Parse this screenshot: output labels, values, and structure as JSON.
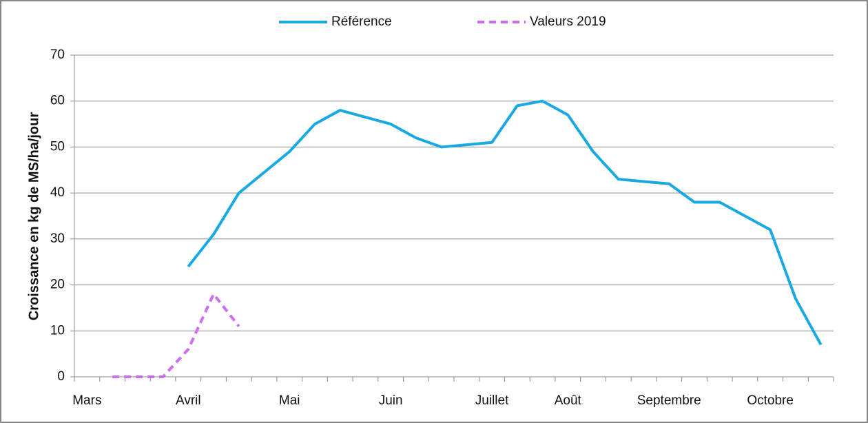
{
  "chart_data": {
    "type": "line",
    "y_label": "Croissance en kg de MS/ha/jour",
    "categories": [
      "Mars",
      null,
      null,
      null,
      "Avril",
      null,
      null,
      null,
      "Mai",
      null,
      null,
      null,
      "Juin",
      null,
      null,
      null,
      "Juillet",
      null,
      null,
      "Août",
      null,
      null,
      null,
      "Septembre",
      null,
      null,
      null,
      "Octobre",
      null,
      null
    ],
    "series": [
      {
        "name": "Référence",
        "color": "#19a9e2",
        "dash": false,
        "values": [
          null,
          null,
          null,
          null,
          24,
          31,
          40,
          44.5,
          49,
          55,
          58,
          56.5,
          55,
          52,
          50,
          50.5,
          51,
          59,
          60,
          57,
          49,
          43,
          42.5,
          42,
          38,
          38,
          35,
          32,
          17,
          7
        ]
      },
      {
        "name": "Valeurs 2019",
        "color": "#cc6ef0",
        "dash": true,
        "values": [
          null,
          0,
          0,
          0,
          6,
          18,
          11,
          null,
          null,
          null,
          null,
          null,
          null,
          null,
          null,
          null,
          null,
          null,
          null,
          null,
          null,
          null,
          null,
          null,
          null,
          null,
          null,
          null,
          null,
          null
        ]
      }
    ],
    "ylim": [
      0,
      70
    ],
    "yticks": [
      0,
      10,
      20,
      30,
      40,
      50,
      60,
      70
    ],
    "grid": true,
    "legend": "top"
  }
}
